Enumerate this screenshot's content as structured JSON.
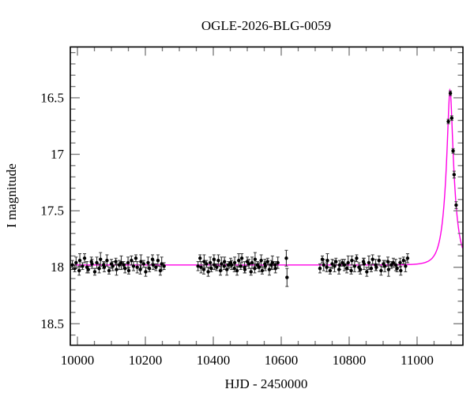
{
  "title": "OGLE-2026-BLG-0059",
  "chart_data": {
    "type": "scatter",
    "title": "OGLE-2026-BLG-0059",
    "xlabel": "HJD - 2450000",
    "ylabel": "I magnitude",
    "xlim": [
      9979,
      11135
    ],
    "ylim": [
      18.69,
      16.05
    ],
    "y_inverted": true,
    "grid": false,
    "legend": "none",
    "x_major_ticks": [
      10000,
      10200,
      10400,
      10600,
      10800,
      11000
    ],
    "x_tick_labels": [
      "10000",
      "10200",
      "10400",
      "10600",
      "10800",
      "11000"
    ],
    "x_minor_step": 50,
    "y_major_ticks": [
      16.5,
      17,
      17.5,
      18,
      18.5
    ],
    "y_tick_labels": [
      "16.5",
      "17",
      "17.5",
      "18",
      "18.5"
    ],
    "y_minor_step": 0.1,
    "colors": {
      "points": "#000000",
      "error_bars": "#333333",
      "model_curve": "#ff00e6",
      "ticks": "#777777",
      "frame": "#000000",
      "background": "#ffffff"
    },
    "model": {
      "kind": "paczynski",
      "t0": 11097,
      "tE": 26,
      "u0": 0.245,
      "baseline_mag": 17.98
    },
    "points": [
      [
        9985,
        17.98,
        0.04
      ],
      [
        9992,
        18.01,
        0.03
      ],
      [
        9996,
        17.96,
        0.05
      ],
      [
        10005,
        18.03,
        0.04
      ],
      [
        10007,
        17.94,
        0.06
      ],
      [
        10015,
        17.99,
        0.03
      ],
      [
        10021,
        17.92,
        0.04
      ],
      [
        10028,
        18.0,
        0.05
      ],
      [
        10032,
        18.02,
        0.03
      ],
      [
        10041,
        17.95,
        0.04
      ],
      [
        10043,
        17.97,
        0.04
      ],
      [
        10051,
        18.04,
        0.03
      ],
      [
        10057,
        17.96,
        0.05
      ],
      [
        10064,
        18.01,
        0.04
      ],
      [
        10068,
        17.93,
        0.06
      ],
      [
        10077,
        17.98,
        0.03
      ],
      [
        10079,
        18.0,
        0.04
      ],
      [
        10087,
        17.94,
        0.05
      ],
      [
        10093,
        18.03,
        0.03
      ],
      [
        10100,
        17.97,
        0.04
      ],
      [
        10104,
        17.99,
        0.04
      ],
      [
        10113,
        17.95,
        0.03
      ],
      [
        10115,
        18.02,
        0.05
      ],
      [
        10123,
        17.98,
        0.04
      ],
      [
        10129,
        17.96,
        0.06
      ],
      [
        10136,
        17.98,
        0.03
      ],
      [
        10140,
        18.01,
        0.04
      ],
      [
        10149,
        17.96,
        0.05
      ],
      [
        10151,
        18.03,
        0.03
      ],
      [
        10159,
        17.94,
        0.04
      ],
      [
        10165,
        17.99,
        0.04
      ],
      [
        10172,
        17.92,
        0.03
      ],
      [
        10176,
        18.0,
        0.05
      ],
      [
        10185,
        18.02,
        0.04
      ],
      [
        10187,
        17.95,
        0.06
      ],
      [
        10195,
        17.97,
        0.03
      ],
      [
        10201,
        18.04,
        0.04
      ],
      [
        10208,
        17.96,
        0.05
      ],
      [
        10212,
        18.01,
        0.03
      ],
      [
        10221,
        17.93,
        0.04
      ],
      [
        10223,
        17.98,
        0.04
      ],
      [
        10231,
        18.0,
        0.03
      ],
      [
        10237,
        17.94,
        0.05
      ],
      [
        10244,
        18.03,
        0.04
      ],
      [
        10248,
        17.97,
        0.06
      ],
      [
        10255,
        17.99,
        0.03
      ],
      [
        10355,
        17.99,
        0.04
      ],
      [
        10361,
        17.92,
        0.03
      ],
      [
        10364,
        18.0,
        0.05
      ],
      [
        10372,
        18.02,
        0.04
      ],
      [
        10373,
        17.95,
        0.06
      ],
      [
        10380,
        17.97,
        0.03
      ],
      [
        10385,
        18.04,
        0.04
      ],
      [
        10391,
        17.96,
        0.05
      ],
      [
        10394,
        18.01,
        0.03
      ],
      [
        10402,
        17.93,
        0.04
      ],
      [
        10403,
        17.98,
        0.04
      ],
      [
        10410,
        18.0,
        0.03
      ],
      [
        10415,
        17.94,
        0.05
      ],
      [
        10421,
        18.03,
        0.04
      ],
      [
        10424,
        17.97,
        0.06
      ],
      [
        10432,
        17.99,
        0.03
      ],
      [
        10433,
        17.95,
        0.04
      ],
      [
        10440,
        18.02,
        0.05
      ],
      [
        10445,
        17.98,
        0.03
      ],
      [
        10451,
        17.96,
        0.04
      ],
      [
        10454,
        17.98,
        0.04
      ],
      [
        10462,
        18.01,
        0.03
      ],
      [
        10463,
        17.96,
        0.05
      ],
      [
        10470,
        18.03,
        0.04
      ],
      [
        10475,
        17.94,
        0.06
      ],
      [
        10481,
        17.99,
        0.03
      ],
      [
        10484,
        17.92,
        0.04
      ],
      [
        10492,
        18.0,
        0.05
      ],
      [
        10493,
        18.02,
        0.03
      ],
      [
        10500,
        17.95,
        0.04
      ],
      [
        10505,
        17.97,
        0.04
      ],
      [
        10511,
        18.04,
        0.03
      ],
      [
        10514,
        17.96,
        0.05
      ],
      [
        10522,
        18.01,
        0.04
      ],
      [
        10523,
        17.93,
        0.06
      ],
      [
        10530,
        17.98,
        0.03
      ],
      [
        10535,
        18.0,
        0.04
      ],
      [
        10541,
        17.94,
        0.05
      ],
      [
        10544,
        18.03,
        0.03
      ],
      [
        10552,
        17.97,
        0.04
      ],
      [
        10553,
        17.99,
        0.04
      ],
      [
        10560,
        17.95,
        0.03
      ],
      [
        10565,
        18.02,
        0.05
      ],
      [
        10571,
        17.98,
        0.04
      ],
      [
        10574,
        17.96,
        0.06
      ],
      [
        10582,
        17.98,
        0.03
      ],
      [
        10583,
        18.01,
        0.04
      ],
      [
        10590,
        17.96,
        0.05
      ],
      [
        10615,
        17.92,
        0.07
      ],
      [
        10617,
        18.09,
        0.08
      ],
      [
        10714,
        18.01,
        0.04
      ],
      [
        10721,
        17.93,
        0.03
      ],
      [
        10725,
        17.98,
        0.05
      ],
      [
        10734,
        18.0,
        0.04
      ],
      [
        10736,
        17.94,
        0.06
      ],
      [
        10744,
        18.03,
        0.03
      ],
      [
        10750,
        17.97,
        0.04
      ],
      [
        10757,
        17.99,
        0.05
      ],
      [
        10761,
        17.95,
        0.03
      ],
      [
        10770,
        18.02,
        0.04
      ],
      [
        10772,
        17.98,
        0.04
      ],
      [
        10780,
        17.96,
        0.03
      ],
      [
        10786,
        17.98,
        0.05
      ],
      [
        10793,
        18.01,
        0.04
      ],
      [
        10797,
        17.96,
        0.06
      ],
      [
        10806,
        18.03,
        0.03
      ],
      [
        10808,
        17.94,
        0.04
      ],
      [
        10816,
        17.99,
        0.05
      ],
      [
        10822,
        17.92,
        0.03
      ],
      [
        10829,
        18.0,
        0.04
      ],
      [
        10833,
        18.02,
        0.04
      ],
      [
        10842,
        17.95,
        0.03
      ],
      [
        10844,
        17.97,
        0.05
      ],
      [
        10852,
        18.04,
        0.04
      ],
      [
        10858,
        17.96,
        0.06
      ],
      [
        10865,
        18.01,
        0.03
      ],
      [
        10869,
        17.93,
        0.04
      ],
      [
        10878,
        17.98,
        0.05
      ],
      [
        10880,
        18.0,
        0.03
      ],
      [
        10888,
        17.94,
        0.04
      ],
      [
        10894,
        18.03,
        0.04
      ],
      [
        10901,
        17.97,
        0.03
      ],
      [
        10905,
        17.99,
        0.05
      ],
      [
        10914,
        17.95,
        0.04
      ],
      [
        10916,
        18.02,
        0.06
      ],
      [
        10924,
        17.98,
        0.03
      ],
      [
        10930,
        17.96,
        0.04
      ],
      [
        10937,
        17.98,
        0.05
      ],
      [
        10941,
        18.01,
        0.03
      ],
      [
        10950,
        17.96,
        0.04
      ],
      [
        10952,
        18.03,
        0.04
      ],
      [
        10960,
        17.94,
        0.03
      ],
      [
        10966,
        17.99,
        0.05
      ],
      [
        10972,
        17.92,
        0.04
      ],
      [
        11092,
        16.71,
        0.02
      ],
      [
        11098,
        16.46,
        0.02
      ],
      [
        11102,
        16.68,
        0.02
      ],
      [
        11106,
        16.97,
        0.02
      ],
      [
        11109,
        17.18,
        0.03
      ],
      [
        11115,
        17.45,
        0.03
      ]
    ]
  }
}
